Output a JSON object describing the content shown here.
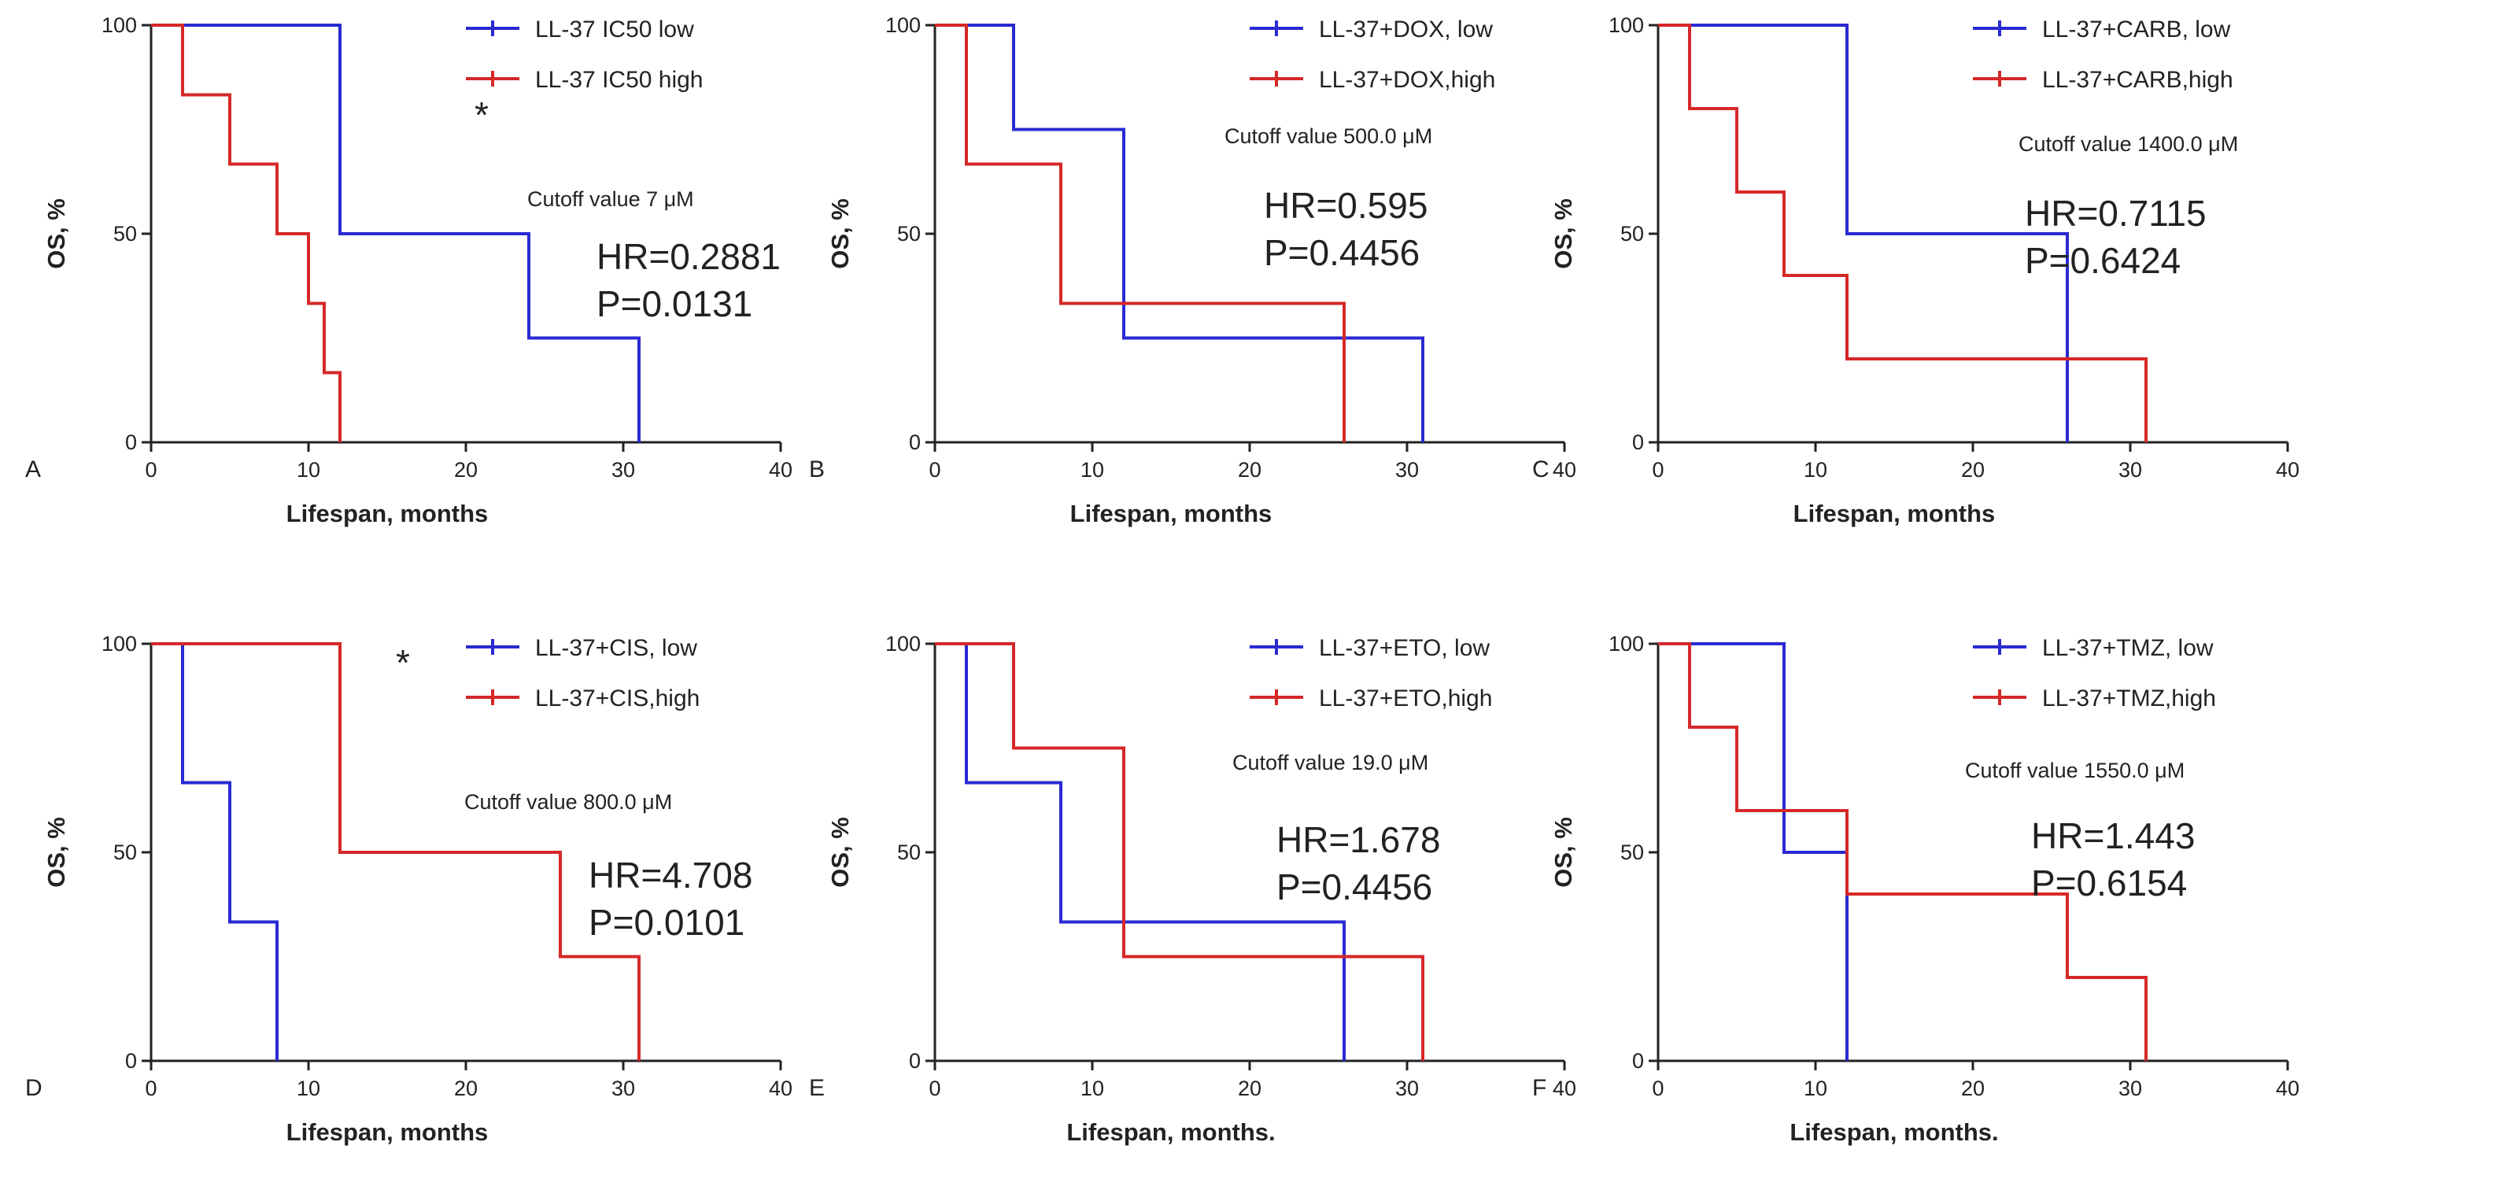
{
  "chart_data": [
    {
      "panel": "A",
      "type": "line",
      "step": true,
      "xlabel": "Lifespan, months",
      "ylabel": "OS, %",
      "xlim": [
        0,
        40
      ],
      "ylim": [
        0,
        100
      ],
      "xticks": [
        "0",
        "10",
        "20",
        "30",
        "40"
      ],
      "yticks": [
        "0",
        "50",
        "100"
      ],
      "legend": "top-right",
      "annotation": "Cutoff value 7 μM",
      "hr": "HR=0.2881",
      "p": "P=0.0131",
      "star": "*",
      "series": [
        {
          "name": "LL-37 IC50 low",
          "color": "#2a2ad2",
          "x": [
            0,
            12,
            24,
            31
          ],
          "y": [
            100,
            50,
            25,
            0
          ]
        },
        {
          "name": "LL-37 IC50 high",
          "color": "#d62828",
          "x": [
            0,
            2,
            5,
            8,
            10,
            11,
            12
          ],
          "y": [
            100,
            83.3,
            66.7,
            50,
            33.3,
            16.7,
            0
          ]
        }
      ]
    },
    {
      "panel": "B",
      "type": "line",
      "step": true,
      "xlabel": "Lifespan, months",
      "ylabel": "OS, %",
      "xlim": [
        0,
        40
      ],
      "ylim": [
        0,
        100
      ],
      "xticks": [
        "0",
        "10",
        "20",
        "30",
        "40"
      ],
      "yticks": [
        "0",
        "50",
        "100"
      ],
      "legend": "top-right",
      "annotation": "Cutoff value 500.0 μM",
      "hr": "HR=0.595",
      "p": "P=0.4456",
      "star": "",
      "series": [
        {
          "name": "LL-37+DOX, low",
          "color": "#2a2ad2",
          "x": [
            0,
            5,
            12,
            31
          ],
          "y": [
            100,
            75,
            25,
            0
          ]
        },
        {
          "name": "LL-37+DOX,high",
          "color": "#d62828",
          "x": [
            0,
            2,
            8,
            26
          ],
          "y": [
            100,
            66.7,
            33.3,
            0
          ]
        }
      ]
    },
    {
      "panel": "C",
      "type": "line",
      "step": true,
      "xlabel": "Lifespan, months",
      "ylabel": "OS, %",
      "xlim": [
        0,
        40
      ],
      "ylim": [
        0,
        100
      ],
      "xticks": [
        "0",
        "10",
        "20",
        "30",
        "40"
      ],
      "yticks": [
        "0",
        "50",
        "100"
      ],
      "legend": "top-right",
      "annotation": "Cutoff value 1400.0 μM",
      "hr": "HR=0.7115",
      "p": "P=0.6424",
      "star": "",
      "series": [
        {
          "name": "LL-37+CARB, low",
          "color": "#2a2ad2",
          "x": [
            0,
            12,
            26
          ],
          "y": [
            100,
            50,
            0
          ]
        },
        {
          "name": "LL-37+CARB,high",
          "color": "#d62828",
          "x": [
            0,
            2,
            5,
            8,
            12,
            31
          ],
          "y": [
            100,
            80,
            60,
            40,
            20,
            0
          ]
        }
      ]
    },
    {
      "panel": "D",
      "type": "line",
      "step": true,
      "xlabel": "Lifespan, months",
      "ylabel": "OS, %",
      "xlim": [
        0,
        40
      ],
      "ylim": [
        0,
        100
      ],
      "xticks": [
        "0",
        "10",
        "20",
        "30",
        "40"
      ],
      "yticks": [
        "0",
        "50",
        "100"
      ],
      "legend": "top-right",
      "annotation": "Cutoff value 800.0 μM",
      "hr": "HR=4.708",
      "p": "P=0.0101",
      "star": "*",
      "series": [
        {
          "name": "LL-37+CIS, low",
          "color": "#2a2ad2",
          "x": [
            0,
            2,
            5,
            8
          ],
          "y": [
            100,
            66.7,
            33.3,
            0
          ]
        },
        {
          "name": "LL-37+CIS,high",
          "color": "#d62828",
          "x": [
            0,
            12,
            26,
            31
          ],
          "y": [
            100,
            50,
            25,
            0
          ]
        }
      ]
    },
    {
      "panel": "E",
      "type": "line",
      "step": true,
      "xlabel": "Lifespan, months.",
      "ylabel": "OS, %",
      "xlim": [
        0,
        40
      ],
      "ylim": [
        0,
        100
      ],
      "xticks": [
        "0",
        "10",
        "20",
        "30",
        "40"
      ],
      "yticks": [
        "0",
        "50",
        "100"
      ],
      "legend": "top-right",
      "annotation": "Cutoff value 19.0 μM",
      "hr": "HR=1.678",
      "p": "P=0.4456",
      "star": "",
      "series": [
        {
          "name": "LL-37+ETO, low",
          "color": "#2a2ad2",
          "x": [
            0,
            2,
            8,
            26
          ],
          "y": [
            100,
            66.7,
            33.3,
            0
          ]
        },
        {
          "name": "LL-37+ETO,high",
          "color": "#d62828",
          "x": [
            0,
            5,
            12,
            31
          ],
          "y": [
            100,
            75,
            25,
            0
          ]
        }
      ]
    },
    {
      "panel": "F",
      "type": "line",
      "step": true,
      "xlabel": "Lifespan, months.",
      "ylabel": "OS, %",
      "xlim": [
        0,
        40
      ],
      "ylim": [
        0,
        100
      ],
      "xticks": [
        "0",
        "10",
        "20",
        "30",
        "40"
      ],
      "yticks": [
        "0",
        "50",
        "100"
      ],
      "legend": "top-right",
      "annotation": "Cutoff value 1550.0 μM",
      "hr": "HR=1.443",
      "p": "P=0.6154",
      "star": "",
      "series": [
        {
          "name": "LL-37+TMZ, low",
          "color": "#2a2ad2",
          "x": [
            0,
            8,
            12
          ],
          "y": [
            100,
            50,
            0
          ]
        },
        {
          "name": "LL-37+TMZ,high",
          "color": "#d62828",
          "x": [
            0,
            2,
            5,
            12,
            26,
            31
          ],
          "y": [
            100,
            80,
            60,
            40,
            20,
            0
          ]
        }
      ]
    }
  ]
}
